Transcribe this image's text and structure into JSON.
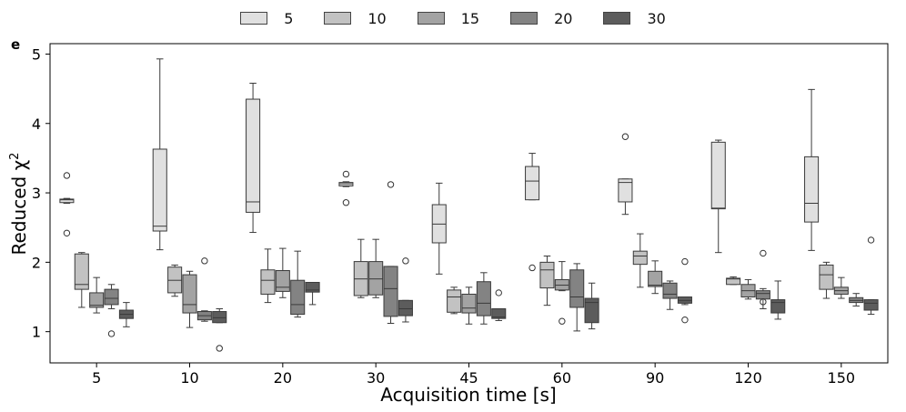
{
  "panel_label": "e",
  "chart_data": {
    "type": "boxplot",
    "title": "",
    "xlabel": "Acquisition time [s]",
    "ylabel": "Reduced χ",
    "ylabel_superscript": "2",
    "categories": [
      "5",
      "10",
      "20",
      "30",
      "45",
      "60",
      "90",
      "120",
      "150"
    ],
    "ylim": [
      0.55,
      5.15
    ],
    "yticks": [
      "1",
      "2",
      "3",
      "4",
      "5"
    ],
    "legend_position": "top-center",
    "series": [
      {
        "name": "5",
        "color": "#e0e0e0",
        "boxes": [
          {
            "whislo": 2.85,
            "q1": 2.86,
            "med": 2.9,
            "q3": 2.91,
            "whishi": 2.92,
            "fliers": [
              3.25,
              2.42
            ]
          },
          {
            "whislo": 2.18,
            "q1": 2.45,
            "med": 2.52,
            "q3": 3.63,
            "whishi": 4.93,
            "fliers": []
          },
          {
            "whislo": 2.43,
            "q1": 2.72,
            "med": 2.87,
            "q3": 4.35,
            "whishi": 4.58,
            "fliers": []
          },
          {
            "whislo": 3.09,
            "q1": 3.1,
            "med": 3.13,
            "q3": 3.15,
            "whishi": 3.16,
            "fliers": [
              3.27,
              2.86
            ]
          },
          {
            "whislo": 1.83,
            "q1": 2.28,
            "med": 2.55,
            "q3": 2.83,
            "whishi": 3.14,
            "fliers": []
          },
          {
            "whislo": 2.9,
            "q1": 2.9,
            "med": 3.17,
            "q3": 3.38,
            "whishi": 3.57,
            "fliers": [
              1.92
            ]
          },
          {
            "whislo": 2.69,
            "q1": 2.87,
            "med": 3.15,
            "q3": 3.2,
            "whishi": 3.2,
            "fliers": [
              3.81
            ]
          },
          {
            "whislo": 2.14,
            "q1": 2.77,
            "med": 2.78,
            "q3": 3.73,
            "whishi": 3.76,
            "fliers": []
          },
          {
            "whislo": 2.17,
            "q1": 2.58,
            "med": 2.85,
            "q3": 3.52,
            "whishi": 4.49,
            "fliers": []
          }
        ]
      },
      {
        "name": "10",
        "color": "#c2c2c2",
        "boxes": [
          {
            "whislo": 1.35,
            "q1": 1.61,
            "med": 1.68,
            "q3": 2.12,
            "whishi": 2.14,
            "fliers": []
          },
          {
            "whislo": 1.51,
            "q1": 1.56,
            "med": 1.74,
            "q3": 1.93,
            "whishi": 1.96,
            "fliers": []
          },
          {
            "whislo": 1.42,
            "q1": 1.54,
            "med": 1.74,
            "q3": 1.89,
            "whishi": 2.19,
            "fliers": []
          },
          {
            "whislo": 1.49,
            "q1": 1.52,
            "med": 1.76,
            "q3": 2.01,
            "whishi": 2.33,
            "fliers": []
          },
          {
            "whislo": 1.26,
            "q1": 1.28,
            "med": 1.5,
            "q3": 1.6,
            "whishi": 1.64,
            "fliers": []
          },
          {
            "whislo": 1.38,
            "q1": 1.63,
            "med": 1.89,
            "q3": 2.0,
            "whishi": 2.09,
            "fliers": []
          },
          {
            "whislo": 1.64,
            "q1": 1.97,
            "med": 2.09,
            "q3": 2.16,
            "whishi": 2.41,
            "fliers": []
          },
          {
            "whislo": 1.68,
            "q1": 1.68,
            "med": 1.76,
            "q3": 1.77,
            "whishi": 1.79,
            "fliers": []
          },
          {
            "whislo": 1.48,
            "q1": 1.61,
            "med": 1.82,
            "q3": 1.96,
            "whishi": 2.0,
            "fliers": []
          }
        ]
      },
      {
        "name": "15",
        "color": "#a3a3a3",
        "boxes": [
          {
            "whislo": 1.27,
            "q1": 1.35,
            "med": 1.38,
            "q3": 1.56,
            "whishi": 1.78,
            "fliers": []
          },
          {
            "whislo": 1.06,
            "q1": 1.27,
            "med": 1.39,
            "q3": 1.82,
            "whishi": 1.87,
            "fliers": []
          },
          {
            "whislo": 1.49,
            "q1": 1.58,
            "med": 1.64,
            "q3": 1.88,
            "whishi": 2.2,
            "fliers": []
          },
          {
            "whislo": 1.49,
            "q1": 1.53,
            "med": 1.76,
            "q3": 2.01,
            "whishi": 2.33,
            "fliers": []
          },
          {
            "whislo": 1.11,
            "q1": 1.27,
            "med": 1.34,
            "q3": 1.54,
            "whishi": 1.64,
            "fliers": []
          },
          {
            "whislo": 1.59,
            "q1": 1.6,
            "med": 1.67,
            "q3": 1.75,
            "whishi": 2.01,
            "fliers": [
              1.15
            ]
          },
          {
            "whislo": 1.55,
            "q1": 1.65,
            "med": 1.67,
            "q3": 1.87,
            "whishi": 2.02,
            "fliers": []
          },
          {
            "whislo": 1.47,
            "q1": 1.5,
            "med": 1.59,
            "q3": 1.68,
            "whishi": 1.75,
            "fliers": []
          },
          {
            "whislo": 1.48,
            "q1": 1.54,
            "med": 1.59,
            "q3": 1.64,
            "whishi": 1.78,
            "fliers": []
          }
        ]
      },
      {
        "name": "20",
        "color": "#838383",
        "boxes": [
          {
            "whislo": 1.33,
            "q1": 1.39,
            "med": 1.48,
            "q3": 1.61,
            "whishi": 1.68,
            "fliers": [
              0.97
            ]
          },
          {
            "whislo": 1.15,
            "q1": 1.17,
            "med": 1.23,
            "q3": 1.29,
            "whishi": 1.3,
            "fliers": [
              2.02
            ]
          },
          {
            "whislo": 1.21,
            "q1": 1.25,
            "med": 1.39,
            "q3": 1.74,
            "whishi": 2.16,
            "fliers": []
          },
          {
            "whislo": 1.12,
            "q1": 1.22,
            "med": 1.62,
            "q3": 1.94,
            "whishi": 1.94,
            "fliers": [
              3.12
            ]
          },
          {
            "whislo": 1.11,
            "q1": 1.23,
            "med": 1.41,
            "q3": 1.72,
            "whishi": 1.85,
            "fliers": []
          },
          {
            "whislo": 1.01,
            "q1": 1.35,
            "med": 1.5,
            "q3": 1.89,
            "whishi": 1.98,
            "fliers": []
          },
          {
            "whislo": 1.32,
            "q1": 1.48,
            "med": 1.54,
            "q3": 1.7,
            "whishi": 1.73,
            "fliers": []
          },
          {
            "whislo": 1.33,
            "q1": 1.47,
            "med": 1.55,
            "q3": 1.59,
            "whishi": 1.62,
            "fliers": [
              2.13,
              1.43
            ]
          },
          {
            "whislo": 1.37,
            "q1": 1.42,
            "med": 1.45,
            "q3": 1.49,
            "whishi": 1.55,
            "fliers": []
          }
        ]
      },
      {
        "name": "30",
        "color": "#5c5c5c",
        "boxes": [
          {
            "whislo": 1.07,
            "q1": 1.19,
            "med": 1.25,
            "q3": 1.31,
            "whishi": 1.42,
            "fliers": []
          },
          {
            "whislo": 1.13,
            "q1": 1.13,
            "med": 1.2,
            "q3": 1.29,
            "whishi": 1.33,
            "fliers": [
              0.76
            ]
          },
          {
            "whislo": 1.39,
            "q1": 1.57,
            "med": 1.6,
            "q3": 1.71,
            "whishi": 1.71,
            "fliers": []
          },
          {
            "whislo": 1.14,
            "q1": 1.23,
            "med": 1.33,
            "q3": 1.45,
            "whishi": 1.45,
            "fliers": [
              2.02
            ]
          },
          {
            "whislo": 1.16,
            "q1": 1.19,
            "med": 1.21,
            "q3": 1.33,
            "whishi": 1.33,
            "fliers": [
              1.56
            ]
          },
          {
            "whislo": 1.04,
            "q1": 1.13,
            "med": 1.42,
            "q3": 1.48,
            "whishi": 1.7,
            "fliers": []
          },
          {
            "whislo": 1.39,
            "q1": 1.41,
            "med": 1.45,
            "q3": 1.5,
            "whishi": 1.5,
            "fliers": [
              2.01,
              1.17
            ]
          },
          {
            "whislo": 1.18,
            "q1": 1.27,
            "med": 1.42,
            "q3": 1.46,
            "whishi": 1.73,
            "fliers": []
          },
          {
            "whislo": 1.25,
            "q1": 1.31,
            "med": 1.41,
            "q3": 1.46,
            "whishi": 1.46,
            "fliers": [
              2.32
            ]
          }
        ]
      }
    ]
  }
}
